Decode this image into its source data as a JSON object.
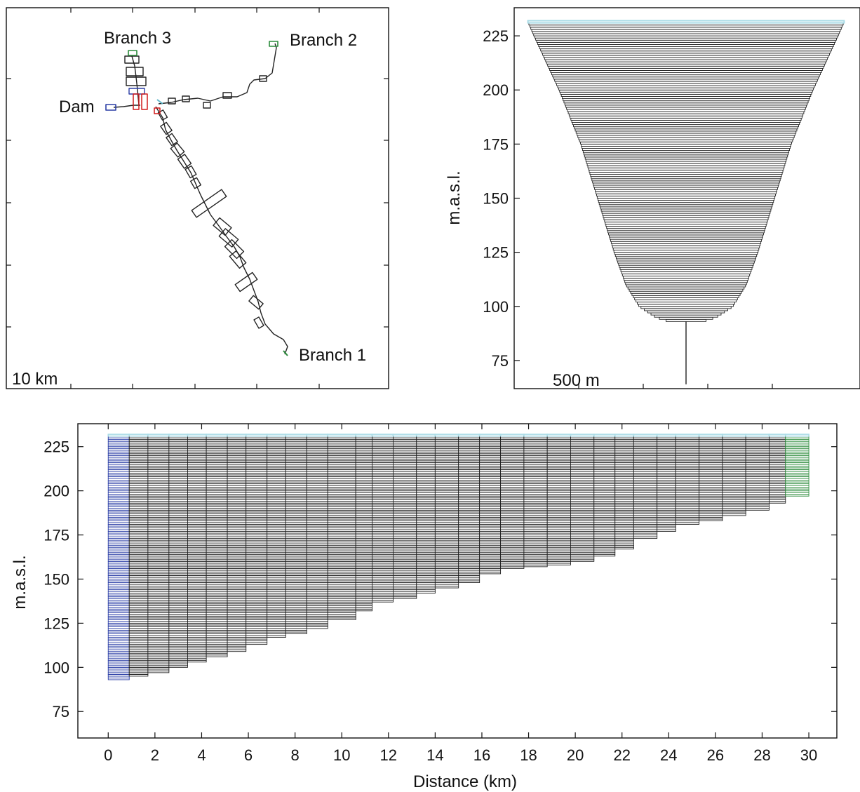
{
  "colors": {
    "axis": "#111111",
    "cell": "#222222",
    "surface": "#a9dbe6",
    "dam": "#2c3fa6",
    "upstream": "#2a8a3a",
    "junction": "#d11a1a"
  },
  "chart_data": [
    {
      "id": "map",
      "type": "diagram",
      "labels": {
        "branch1": "Branch 1",
        "branch2": "Branch 2",
        "branch3": "Branch 3",
        "dam": "Dam"
      },
      "scale_bar_label": "10 km"
    },
    {
      "id": "cross-section",
      "type": "bar",
      "ylabel": "m.a.s.l.",
      "ylim": [
        62,
        238
      ],
      "yticks": [
        75,
        100,
        125,
        150,
        175,
        200,
        225
      ],
      "scale_bar_label": "500 m",
      "layer_thickness": 1,
      "bottom_elevation": 93,
      "channel_bottom": 64,
      "surface_elevation": 232,
      "width_profile": [
        [
          93,
          200
        ],
        [
          95,
          360
        ],
        [
          100,
          560
        ],
        [
          110,
          720
        ],
        [
          125,
          860
        ],
        [
          150,
          1060
        ],
        [
          175,
          1260
        ],
        [
          200,
          1520
        ],
        [
          225,
          1820
        ],
        [
          232,
          1900
        ]
      ]
    },
    {
      "id": "longitudinal",
      "type": "bar",
      "xlabel": "Distance (km)",
      "ylabel": "m.a.s.l.",
      "xlim": [
        -1.3,
        31.2
      ],
      "ylim": [
        60,
        238
      ],
      "xticks": [
        0,
        2,
        4,
        6,
        8,
        10,
        12,
        14,
        16,
        18,
        20,
        22,
        24,
        26,
        28,
        30
      ],
      "yticks": [
        75,
        100,
        125,
        150,
        175,
        200,
        225
      ],
      "surface_elevation": 232,
      "layer_thickness": 1,
      "segment_edges": [
        0,
        0.9,
        1.7,
        2.6,
        3.4,
        4.2,
        5.1,
        5.9,
        6.8,
        7.6,
        8.5,
        9.4,
        10.6,
        11.3,
        12.2,
        13.2,
        14.0,
        15.0,
        15.9,
        16.8,
        17.8,
        18.8,
        19.8,
        20.8,
        21.7,
        22.5,
        23.5,
        24.3,
        25.3,
        26.3,
        27.3,
        28.3,
        29.0,
        30.0
      ],
      "segment_bottoms": [
        93,
        95,
        97,
        100,
        103,
        106,
        109,
        113,
        117,
        119,
        122,
        127,
        132,
        137,
        139,
        142,
        145,
        148,
        153,
        156,
        157,
        158,
        160,
        163,
        167,
        173,
        177,
        181,
        183,
        186,
        189,
        193,
        197
      ],
      "segment_types": [
        "dam",
        "main",
        "main",
        "main",
        "main",
        "main",
        "main",
        "main",
        "main",
        "main",
        "main",
        "main",
        "main",
        "main",
        "main",
        "main",
        "main",
        "main",
        "main",
        "main",
        "main",
        "main",
        "main",
        "main",
        "main",
        "main",
        "main",
        "main",
        "main",
        "main",
        "main",
        "main",
        "upstream"
      ]
    }
  ]
}
